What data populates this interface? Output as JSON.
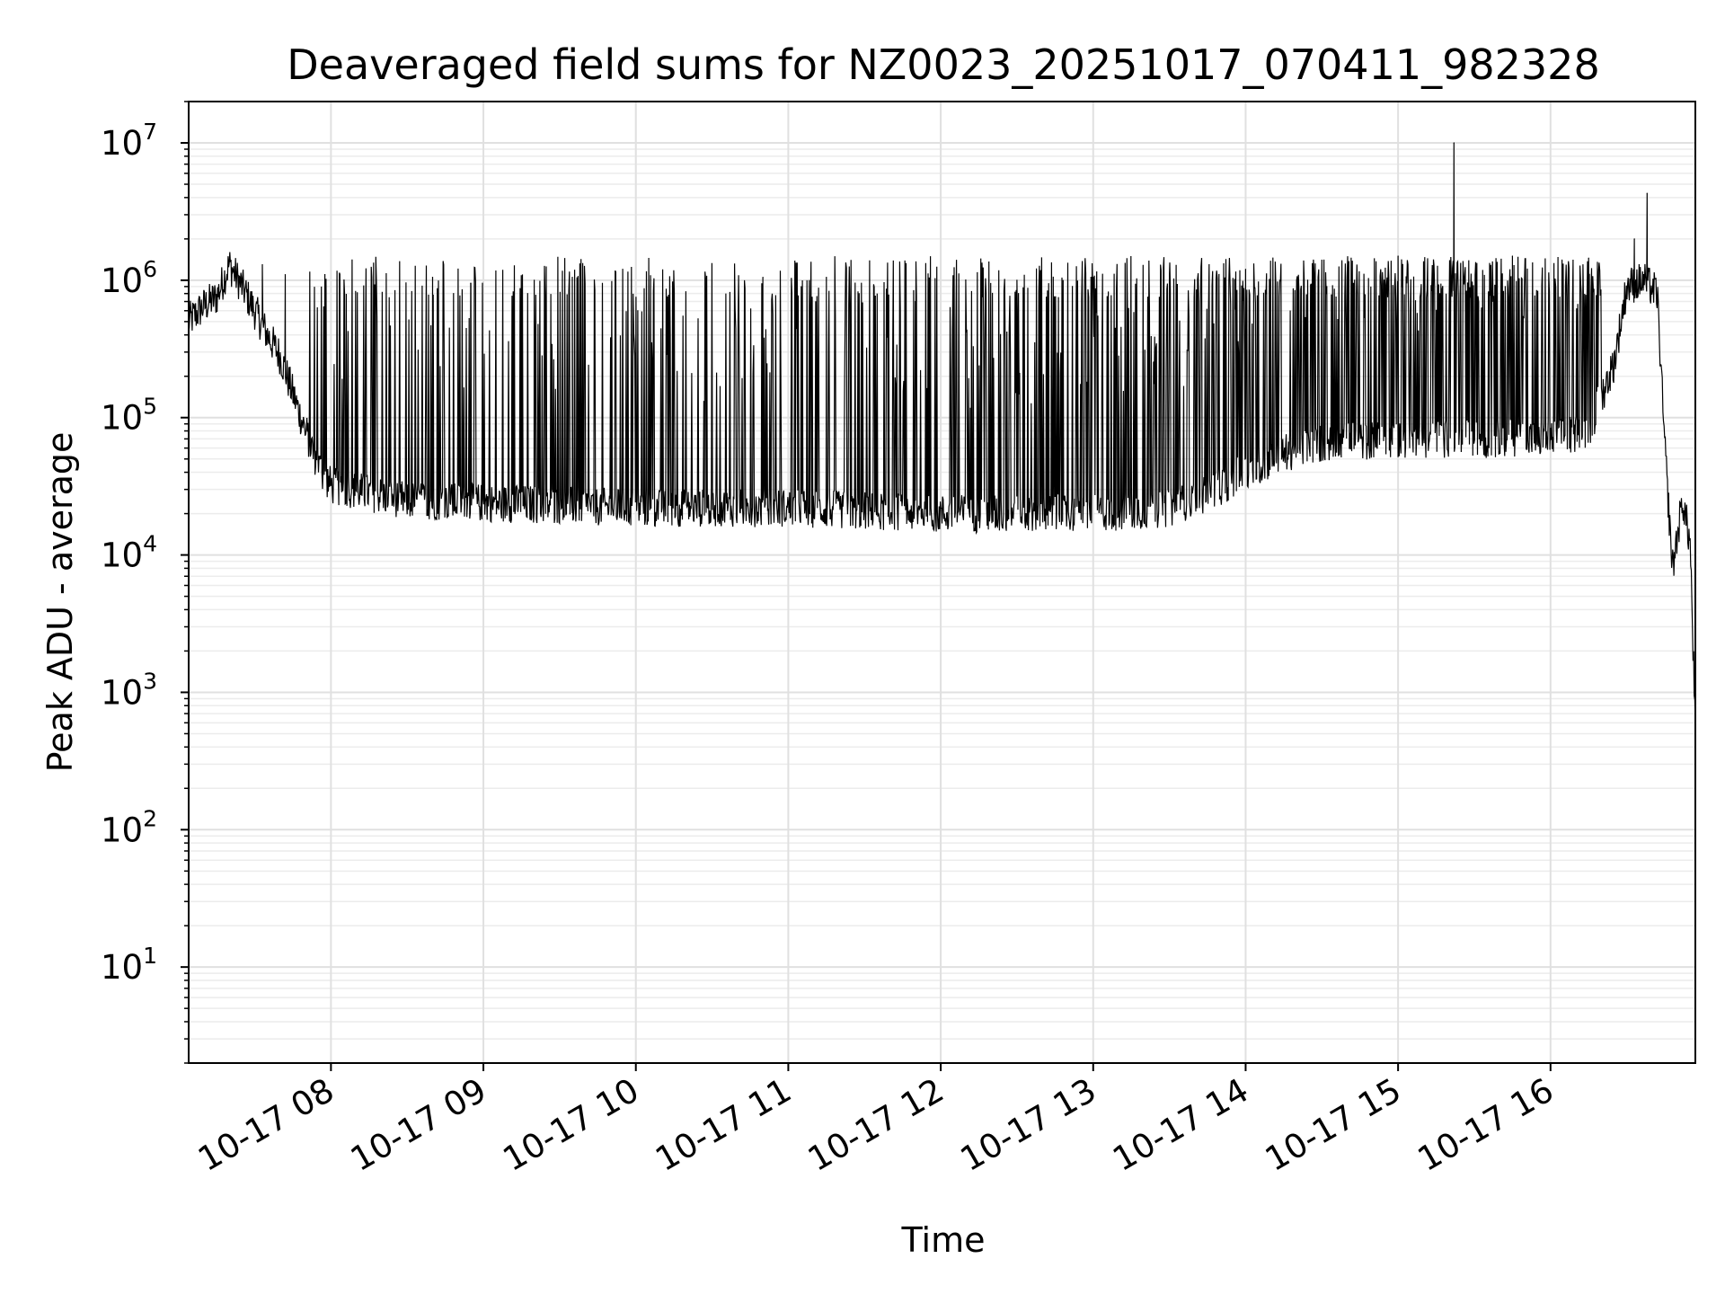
{
  "chart_data": {
    "type": "line",
    "title": "Deaveraged field sums for NZ0023_20251017_070411_982328",
    "xlabel": "Time",
    "ylabel": "Peak ADU - average",
    "x_axis": "time",
    "x_range": [
      "2025-10-17 07:04",
      "2025-10-17 16:57"
    ],
    "x_tick_labels": [
      "10-17 08",
      "10-17 09",
      "10-17 10",
      "10-17 11",
      "10-17 12",
      "10-17 13",
      "10-17 14",
      "10-17 15",
      "10-17 16"
    ],
    "y_scale": "log",
    "ylim": [
      2,
      20000000
    ],
    "y_tick_labels": [
      {
        "base": "10",
        "exp": "1"
      },
      {
        "base": "10",
        "exp": "2"
      },
      {
        "base": "10",
        "exp": "3"
      },
      {
        "base": "10",
        "exp": "4"
      },
      {
        "base": "10",
        "exp": "5"
      },
      {
        "base": "10",
        "exp": "6"
      },
      {
        "base": "10",
        "exp": "7"
      }
    ],
    "grid": true,
    "series": [
      {
        "color": "#000000",
        "baseline": [
          [
            "2025-10-17 07:04",
            500000
          ],
          [
            "2025-10-17 07:10",
            650000
          ],
          [
            "2025-10-17 07:15",
            750000
          ],
          [
            "2025-10-17 07:20",
            1300000
          ],
          [
            "2025-10-17 07:25",
            900000
          ],
          [
            "2025-10-17 07:30",
            600000
          ],
          [
            "2025-10-17 07:35",
            400000
          ],
          [
            "2025-10-17 07:40",
            280000
          ],
          [
            "2025-10-17 07:45",
            150000
          ],
          [
            "2025-10-17 07:50",
            80000
          ],
          [
            "2025-10-17 07:55",
            45000
          ],
          [
            "2025-10-17 08:00",
            32000
          ],
          [
            "2025-10-17 08:30",
            25000
          ],
          [
            "2025-10-17 09:00",
            24000
          ],
          [
            "2025-10-17 09:30",
            23000
          ],
          [
            "2025-10-17 10:00",
            22000
          ],
          [
            "2025-10-17 10:30",
            22000
          ],
          [
            "2025-10-17 11:00",
            22000
          ],
          [
            "2025-10-17 11:30",
            21000
          ],
          [
            "2025-10-17 12:00",
            20000
          ],
          [
            "2025-10-17 12:30",
            20000
          ],
          [
            "2025-10-17 13:00",
            20000
          ],
          [
            "2025-10-17 13:30",
            22000
          ],
          [
            "2025-10-17 13:45",
            28000
          ],
          [
            "2025-10-17 14:00",
            40000
          ],
          [
            "2025-10-17 14:15",
            55000
          ],
          [
            "2025-10-17 14:30",
            65000
          ],
          [
            "2025-10-17 15:00",
            70000
          ],
          [
            "2025-10-17 15:30",
            70000
          ],
          [
            "2025-10-17 16:00",
            70000
          ],
          [
            "2025-10-17 16:15",
            80000
          ],
          [
            "2025-10-17 16:25",
            250000
          ],
          [
            "2025-10-17 16:30",
            900000
          ],
          [
            "2025-10-17 16:37",
            1000000
          ],
          [
            "2025-10-17 16:42",
            800000
          ],
          [
            "2025-10-17 16:45",
            60000
          ],
          [
            "2025-10-17 16:48",
            8000
          ],
          [
            "2025-10-17 16:52",
            25000
          ],
          [
            "2025-10-17 16:55",
            12000
          ],
          [
            "2025-10-17 16:57",
            500
          ]
        ],
        "peaks": [
          [
            "2025-10-17 07:33",
            1300000
          ],
          [
            "2025-10-17 07:42",
            1100000
          ],
          [
            "2025-10-17 08:40",
            1050000
          ],
          [
            "2025-10-17 08:55",
            950000
          ],
          [
            "2025-10-17 09:20",
            1000000
          ],
          [
            "2025-10-17 09:35",
            1050000
          ],
          [
            "2025-10-17 10:50",
            1050000
          ],
          [
            "2025-10-17 11:15",
            1050000
          ],
          [
            "2025-10-17 11:50",
            700000
          ],
          [
            "2025-10-17 12:05",
            1050000
          ],
          [
            "2025-10-17 12:30",
            1000000
          ],
          [
            "2025-10-17 13:00",
            1050000
          ],
          [
            "2025-10-17 13:30",
            1100000
          ],
          [
            "2025-10-17 14:00",
            1200000
          ],
          [
            "2025-10-17 14:30",
            1400000
          ],
          [
            "2025-10-17 15:00",
            1500000
          ],
          [
            "2025-10-17 15:22",
            10000000
          ],
          [
            "2025-10-17 15:45",
            1500000
          ],
          [
            "2025-10-17 16:15",
            1450000
          ],
          [
            "2025-10-17 16:33",
            2000000
          ],
          [
            "2025-10-17 16:38",
            4300000
          ]
        ]
      }
    ]
  }
}
